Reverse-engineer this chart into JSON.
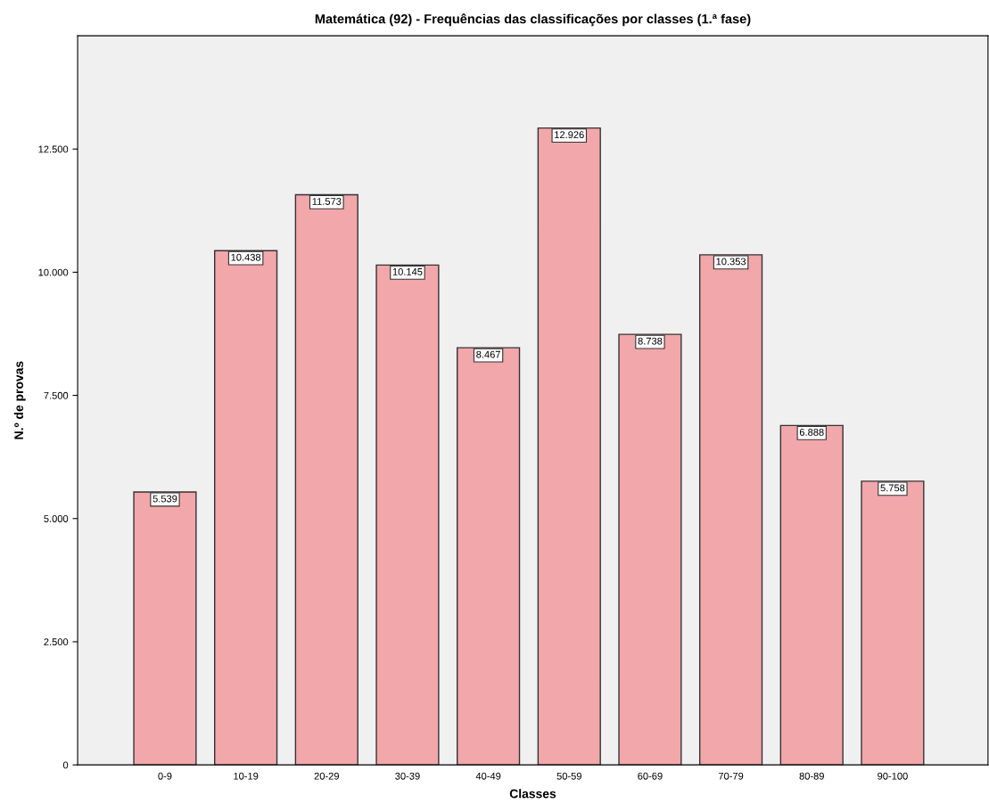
{
  "chart_data": {
    "type": "bar",
    "title": "Matemática (92) - Frequências das classificações por classes (1.ª fase)",
    "xlabel": "Classes",
    "ylabel": "N.º de provas",
    "categories": [
      "0-9",
      "10-19",
      "20-29",
      "30-39",
      "40-49",
      "50-59",
      "60-69",
      "70-79",
      "80-89",
      "90-100"
    ],
    "values": [
      5539,
      10438,
      11573,
      10145,
      8467,
      12926,
      8738,
      10353,
      6888,
      5758
    ],
    "value_labels": [
      "5.539",
      "10.438",
      "11.573",
      "10.145",
      "8.467",
      "12.926",
      "8.738",
      "10.353",
      "6.888",
      "5.758"
    ],
    "color": "#f2a7ab",
    "ylim": [
      0,
      14800
    ],
    "yticks": [
      0,
      {
        "value": 2500,
        "label": "2.500"
      },
      {
        "value": 5000,
        "label": "5.000"
      },
      {
        "value": 7500,
        "label": "7.500"
      },
      {
        "value": 10000,
        "label": "10.000"
      },
      {
        "value": 12500,
        "label": "12.500"
      }
    ],
    "grid": false,
    "legend": false
  }
}
